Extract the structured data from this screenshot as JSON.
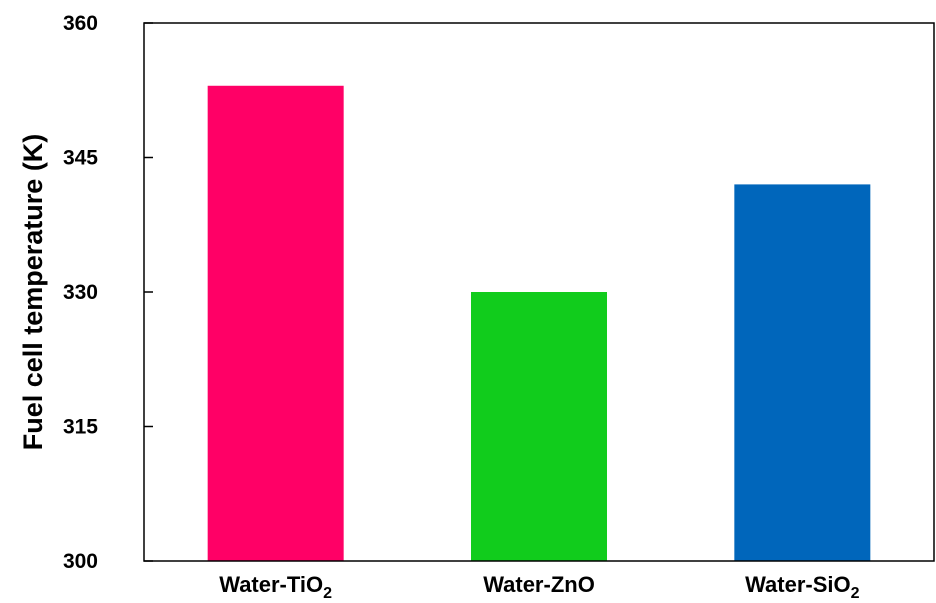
{
  "chart_data": {
    "type": "bar",
    "ylabel": "Fuel cell temperature (K)",
    "xlabel": "",
    "ylim": [
      300,
      360
    ],
    "yticks": [
      300,
      315,
      330,
      345,
      360
    ],
    "grid": false,
    "categories": [
      {
        "prefix": "Water-TiO",
        "sub": "2"
      },
      {
        "prefix": "Water-ZnO",
        "sub": ""
      },
      {
        "prefix": "Water-SiO",
        "sub": "2"
      }
    ],
    "values": [
      353,
      330,
      342
    ],
    "colors": [
      "#ff0066",
      "#11cc1c",
      "#0066bb"
    ]
  }
}
